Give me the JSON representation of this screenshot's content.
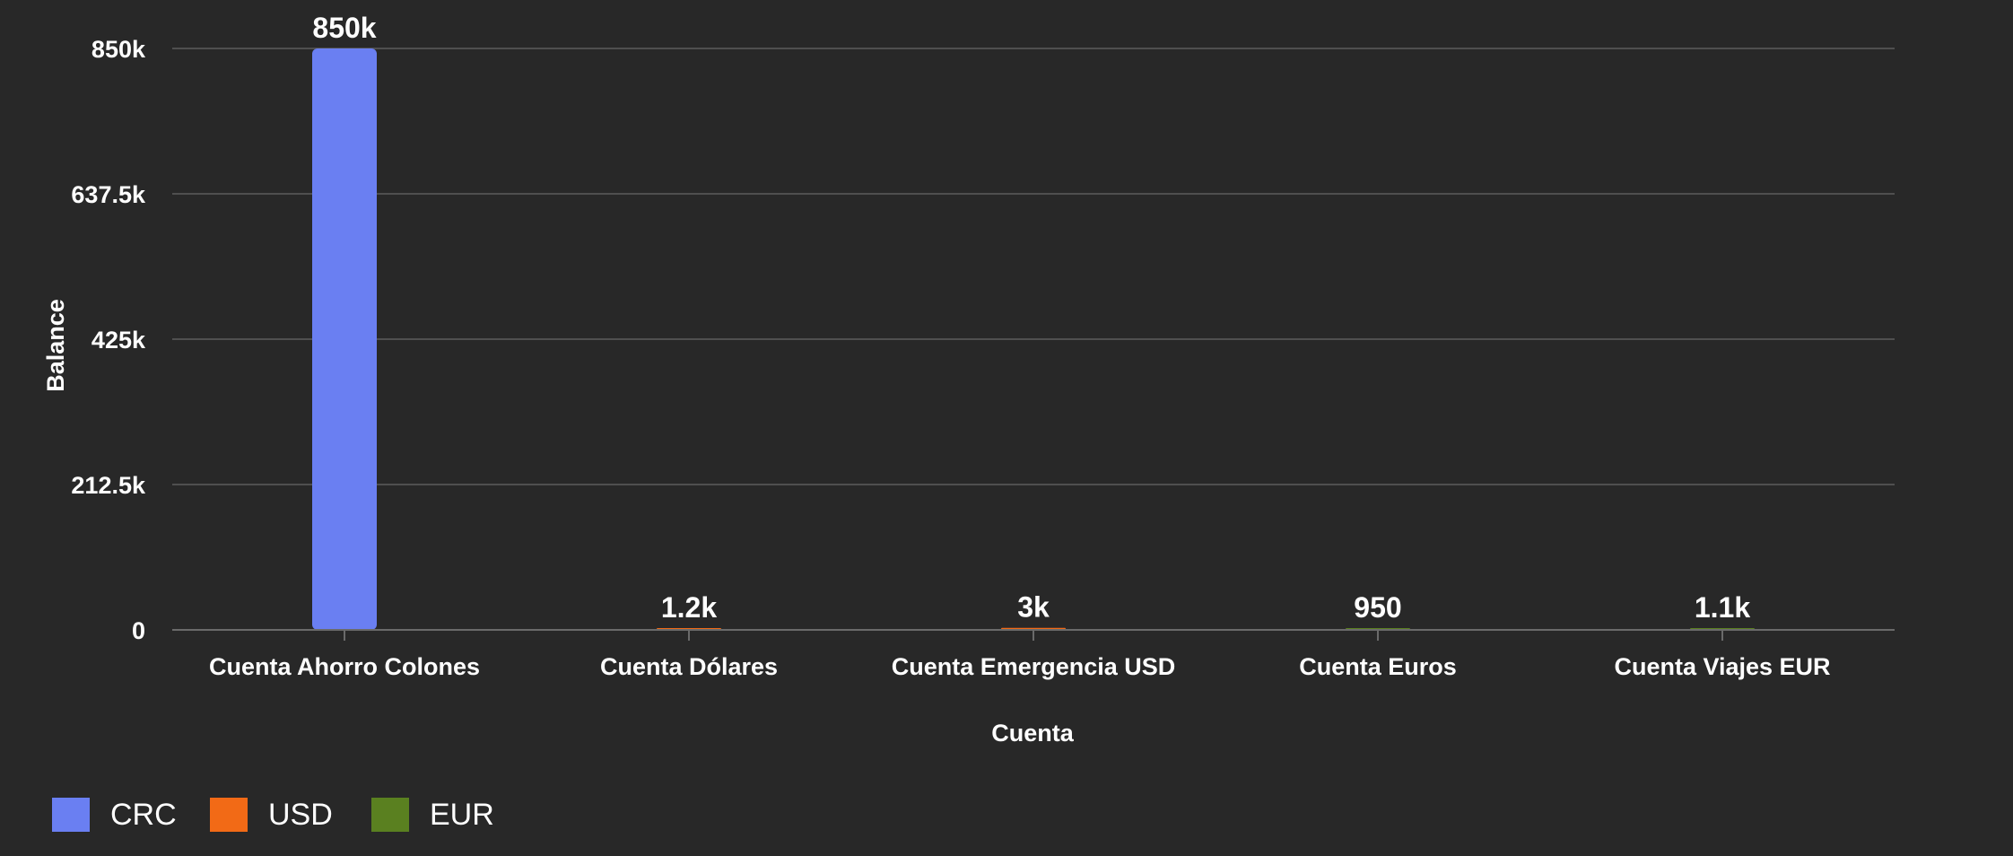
{
  "chart_data": {
    "type": "bar",
    "categories": [
      "Cuenta Ahorro Colones",
      "Cuenta Dólares",
      "Cuenta Emergencia USD",
      "Cuenta Euros",
      "Cuenta Viajes EUR"
    ],
    "values": [
      850000,
      1200,
      3000,
      950,
      1100
    ],
    "value_labels": [
      "850k",
      "1.2k",
      "3k",
      "950",
      "1.1k"
    ],
    "bar_currency": [
      "CRC",
      "USD",
      "USD",
      "EUR",
      "EUR"
    ],
    "xlabel": "Cuenta",
    "ylabel": "Balance",
    "ylim": [
      0,
      850000
    ],
    "yticks": [
      0,
      212500,
      425000,
      637500,
      850000
    ],
    "ytick_labels": [
      "0",
      "212.5k",
      "425k",
      "637.5k",
      "850k"
    ],
    "grid": true,
    "legend_position": "bottom-left",
    "legend": [
      {
        "name": "CRC",
        "color": "#6a7ff2"
      },
      {
        "name": "USD",
        "color": "#f26a16"
      },
      {
        "name": "EUR",
        "color": "#5a8020"
      }
    ]
  },
  "colors": {
    "background": "#282828",
    "grid": "#4f4f4f",
    "axis": "#6a6a6a",
    "text": "#ffffff"
  }
}
